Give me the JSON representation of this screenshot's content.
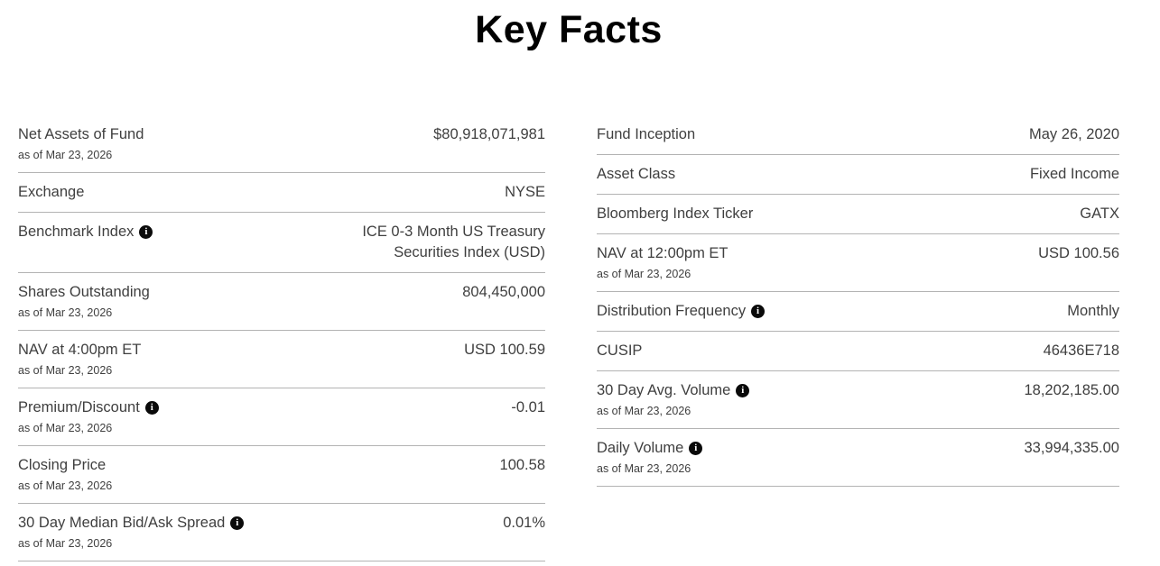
{
  "page": {
    "title": "Key Facts"
  },
  "icons": {
    "info_glyph": "i"
  },
  "columns": {
    "left": {
      "rows": [
        {
          "label": "Net Assets of Fund",
          "as_of": "as of Mar 23, 2026",
          "value": "$80,918,071,981"
        },
        {
          "label": "Exchange",
          "value": "NYSE"
        },
        {
          "label": "Benchmark Index",
          "has_info": true,
          "value": "ICE 0-3 Month US Treasury Securities Index (USD)"
        },
        {
          "label": "Shares Outstanding",
          "as_of": "as of Mar 23, 2026",
          "value": "804,450,000"
        },
        {
          "label": "NAV at 4:00pm ET",
          "as_of": "as of Mar 23, 2026",
          "value": "USD 100.59"
        },
        {
          "label": "Premium/Discount",
          "has_info": true,
          "as_of": "as of Mar 23, 2026",
          "value": "-0.01"
        },
        {
          "label": "Closing Price",
          "as_of": "as of Mar 23, 2026",
          "value": "100.58"
        },
        {
          "label": "30 Day Median Bid/Ask Spread",
          "has_info": true,
          "as_of": "as of Mar 23, 2026",
          "value": "0.01%"
        }
      ]
    },
    "right": {
      "rows": [
        {
          "label": "Fund Inception",
          "value": "May 26, 2020"
        },
        {
          "label": "Asset Class",
          "value": "Fixed Income"
        },
        {
          "label": "Bloomberg Index Ticker",
          "value": "GATX"
        },
        {
          "label": "NAV at 12:00pm ET",
          "as_of": "as of Mar 23, 2026",
          "value": "USD 100.56"
        },
        {
          "label": "Distribution Frequency",
          "has_info": true,
          "value": "Monthly"
        },
        {
          "label": "CUSIP",
          "value": "46436E718"
        },
        {
          "label": "30 Day Avg. Volume",
          "has_info": true,
          "as_of": "as of Mar 23, 2026",
          "value": "18,202,185.00"
        },
        {
          "label": "Daily Volume",
          "has_info": true,
          "as_of": "as of Mar 23, 2026",
          "value": "33,994,335.00"
        }
      ]
    }
  }
}
